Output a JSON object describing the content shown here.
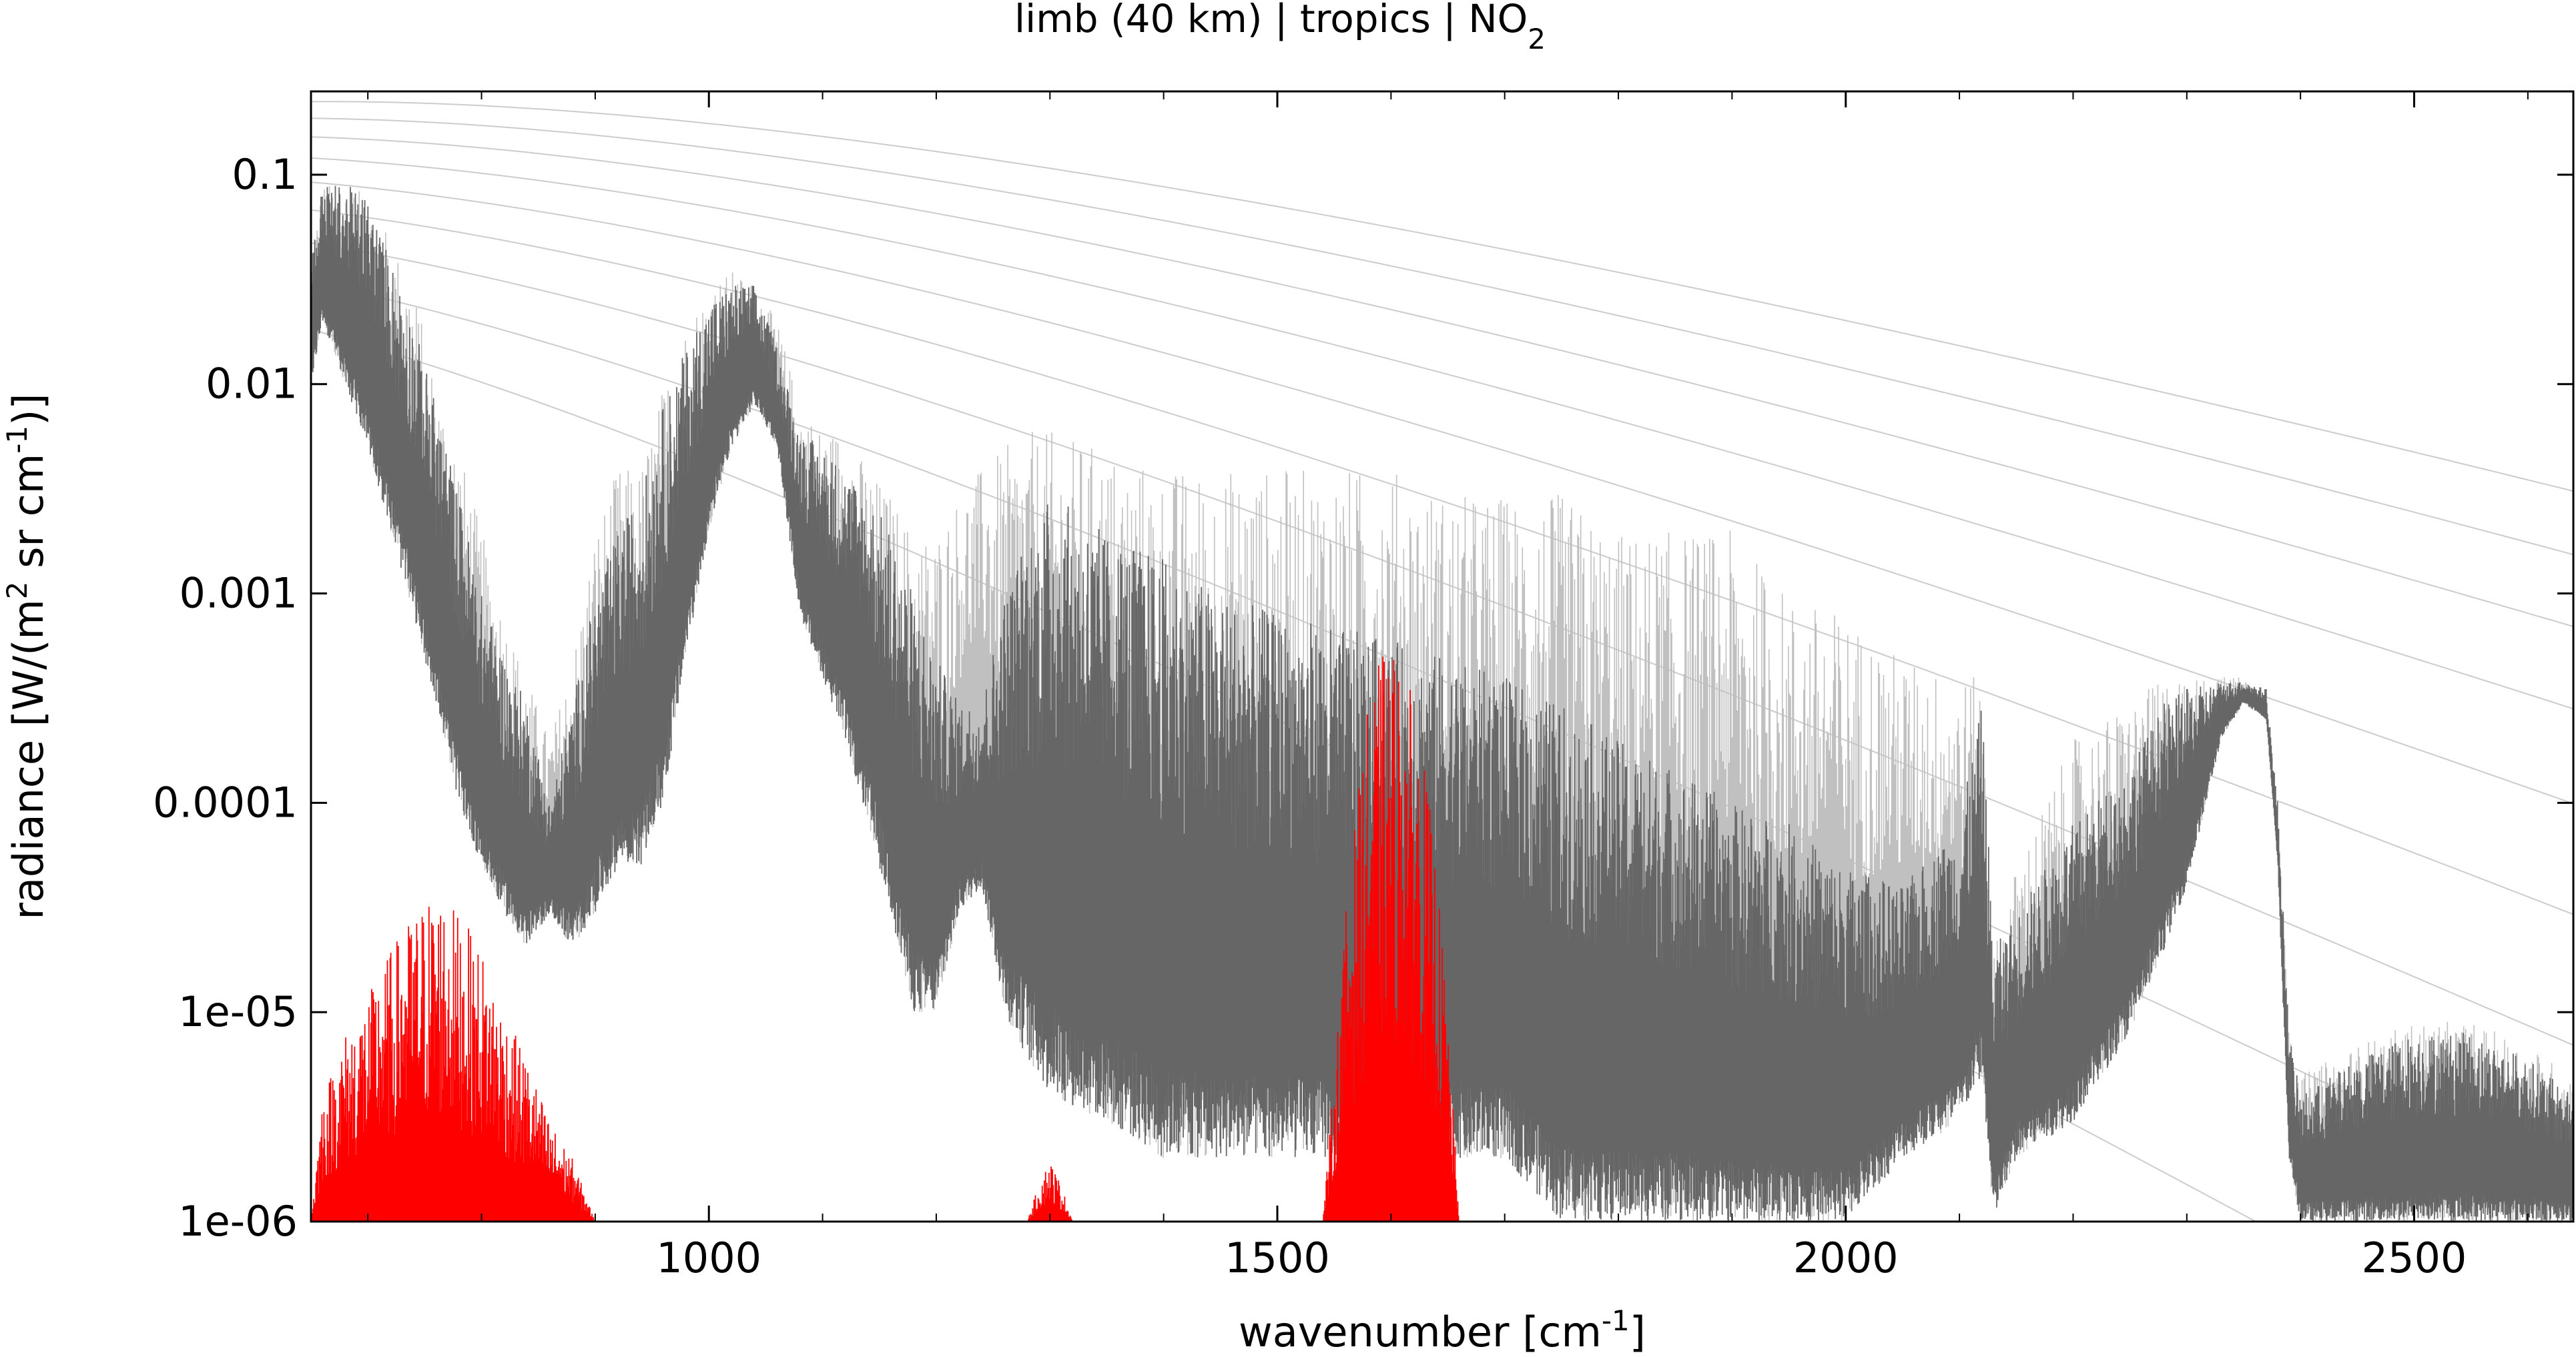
{
  "chart_data": {
    "type": "line",
    "title": {
      "prefix": "limb (40 km) | tropics | NO",
      "sub": "2"
    },
    "xlabel": {
      "prefix": "wavenumber [cm",
      "sup": "-1",
      "suffix": "]"
    },
    "ylabel": {
      "p1": "radiance [W/(m",
      "s1": "2",
      "p2": " sr cm",
      "s2": "-1",
      "p3": ")]"
    },
    "x_scale": "linear",
    "y_scale": "log",
    "xlim": [
      650,
      2640
    ],
    "ylim": [
      1e-06,
      0.25
    ],
    "xticks": [
      {
        "value": 1000,
        "label": "1000"
      },
      {
        "value": 1500,
        "label": "1500"
      },
      {
        "value": 2000,
        "label": "2000"
      },
      {
        "value": 2500,
        "label": "2500"
      }
    ],
    "yticks": [
      {
        "value": 0.1,
        "label": "0.1"
      },
      {
        "value": 0.01,
        "label": "0.01"
      },
      {
        "value": 0.001,
        "label": "0.001"
      },
      {
        "value": 0.0001,
        "label": "0.0001"
      },
      {
        "value": 1e-05,
        "label": "1e-05"
      },
      {
        "value": 1e-06,
        "label": "1e-06"
      }
    ],
    "grid": false,
    "legend": "none",
    "series": [
      {
        "role": "planck-reference-curves",
        "color": "#cccccc",
        "temperatures_K": [
          180,
          200,
          220,
          240,
          260,
          280,
          300,
          320,
          340
        ]
      },
      {
        "role": "total-radiance-envelope",
        "color": "#c0c0c0",
        "x": [
          650,
          660,
          680,
          700,
          720,
          740,
          760,
          780,
          800,
          820,
          840,
          860,
          880,
          900,
          920,
          940,
          960,
          980,
          1000,
          1020,
          1040,
          1060,
          1080,
          1100,
          1120,
          1140,
          1160,
          1180,
          1200,
          1220,
          1240,
          1260,
          1280,
          1300,
          1350,
          1400,
          1450,
          1500,
          1550,
          1600,
          1650,
          1700,
          1750,
          1800,
          1850,
          1900,
          1950,
          2000,
          2050,
          2100,
          2120,
          2130,
          2150,
          2200,
          2250,
          2280,
          2300,
          2330,
          2350,
          2370,
          2380,
          2390,
          2400,
          2450,
          2500,
          2550,
          2600,
          2640
        ],
        "y": [
          0.04,
          0.09,
          0.09,
          0.08,
          0.05,
          0.03,
          0.01,
          0.005,
          0.002,
          0.0008,
          0.0004,
          0.0002,
          0.0005,
          0.002,
          0.004,
          0.004,
          0.01,
          0.02,
          0.03,
          0.035,
          0.03,
          0.02,
          0.008,
          0.006,
          0.006,
          0.004,
          0.003,
          0.002,
          0.002,
          0.003,
          0.004,
          0.005,
          0.006,
          0.006,
          0.005,
          0.004,
          0.004,
          0.004,
          0.004,
          0.004,
          0.003,
          0.003,
          0.003,
          0.002,
          0.002,
          0.002,
          0.001,
          0.0008,
          0.0005,
          0.0004,
          0.0004,
          2e-05,
          5e-05,
          0.0002,
          0.0003,
          0.0004,
          0.0004,
          0.0004,
          0.0004,
          0.0003,
          0.0001,
          1e-05,
          5e-06,
          7e-06,
          9e-06,
          9e-06,
          7e-06,
          5e-06
        ]
      },
      {
        "role": "total-radiance-upper",
        "color": "#666666",
        "x": [
          650,
          660,
          680,
          700,
          720,
          740,
          760,
          780,
          800,
          820,
          840,
          860,
          880,
          900,
          920,
          940,
          960,
          980,
          1000,
          1020,
          1040,
          1060,
          1080,
          1100,
          1120,
          1140,
          1160,
          1180,
          1200,
          1220,
          1240,
          1260,
          1280,
          1300,
          1350,
          1400,
          1450,
          1500,
          1550,
          1600,
          1650,
          1700,
          1750,
          1800,
          1850,
          1900,
          1950,
          2000,
          2050,
          2100,
          2120,
          2130,
          2150,
          2200,
          2250,
          2280,
          2300,
          2330,
          2350,
          2370,
          2380,
          2390,
          2400,
          2450,
          2500,
          2550,
          2600,
          2640
        ],
        "y": [
          0.04,
          0.09,
          0.09,
          0.08,
          0.04,
          0.02,
          0.008,
          0.003,
          0.001,
          0.0005,
          0.0003,
          0.0001,
          0.0003,
          0.001,
          0.002,
          0.003,
          0.008,
          0.015,
          0.025,
          0.03,
          0.03,
          0.015,
          0.006,
          0.005,
          0.004,
          0.003,
          0.002,
          0.001,
          0.0005,
          0.0003,
          0.0003,
          0.001,
          0.002,
          0.003,
          0.002,
          0.0015,
          0.001,
          0.0008,
          0.0007,
          0.0006,
          0.0005,
          0.0004,
          0.0003,
          0.0002,
          0.00015,
          0.0001,
          8e-05,
          5e-05,
          4e-05,
          8e-05,
          0.0003,
          2e-05,
          3e-05,
          8e-05,
          0.00015,
          0.0003,
          0.00035,
          0.00038,
          0.00038,
          0.00035,
          0.0001,
          8e-06,
          4e-06,
          6e-06,
          8e-06,
          8e-06,
          6e-06,
          4e-06
        ]
      },
      {
        "role": "total-radiance-lower",
        "color": "#666666",
        "x": [
          650,
          660,
          680,
          700,
          720,
          740,
          760,
          780,
          800,
          820,
          840,
          860,
          880,
          900,
          920,
          940,
          960,
          980,
          1000,
          1020,
          1040,
          1060,
          1080,
          1100,
          1120,
          1140,
          1160,
          1180,
          1200,
          1220,
          1240,
          1260,
          1280,
          1300,
          1350,
          1400,
          1450,
          1500,
          1550,
          1600,
          1650,
          1700,
          1750,
          1800,
          1850,
          1900,
          1950,
          2000,
          2050,
          2100,
          2120,
          2130,
          2150,
          2200,
          2250,
          2280,
          2300,
          2330,
          2350,
          2370,
          2380,
          2390,
          2400,
          2450,
          2500,
          2550,
          2600,
          2640
        ],
        "y": [
          0.01,
          0.02,
          0.01,
          0.005,
          0.002,
          0.0008,
          0.0003,
          0.0001,
          5e-05,
          3e-05,
          2e-05,
          3e-05,
          2e-05,
          3e-05,
          5e-05,
          5e-05,
          0.0001,
          0.0005,
          0.002,
          0.005,
          0.008,
          0.005,
          0.0008,
          0.0004,
          0.0002,
          8e-05,
          3e-05,
          1e-05,
          1e-05,
          3e-05,
          4e-05,
          1e-05,
          6e-06,
          4e-06,
          3e-06,
          2e-06,
          2e-06,
          2e-06,
          2e-06,
          2e-06,
          2e-06,
          2e-06,
          1e-06,
          1e-06,
          1e-06,
          1e-06,
          1e-06,
          1e-06,
          2e-06,
          3e-06,
          5e-06,
          1e-06,
          2e-06,
          3e-06,
          8e-06,
          2e-05,
          4e-05,
          0.0002,
          0.0003,
          0.00025,
          5e-05,
          2e-06,
          1e-06,
          1e-06,
          1e-06,
          1e-06,
          1e-06,
          1e-06
        ]
      },
      {
        "role": "gas-contribution-NO2",
        "color": "#ff0000",
        "x": [
          650,
          660,
          680,
          700,
          720,
          740,
          760,
          780,
          800,
          820,
          840,
          860,
          880,
          900,
          1280,
          1290,
          1300,
          1310,
          1320,
          1540,
          1550,
          1560,
          1570,
          1580,
          1590,
          1600,
          1610,
          1620,
          1630,
          1640,
          1650,
          1660
        ],
        "y": [
          1e-06,
          4e-06,
          8e-06,
          1.2e-05,
          2e-05,
          3e-05,
          4e-05,
          3e-05,
          2e-05,
          1e-05,
          6e-06,
          3e-06,
          2e-06,
          1e-06,
          1e-06,
          1.5e-06,
          2e-06,
          1.5e-06,
          1e-06,
          1e-06,
          5e-06,
          3e-05,
          0.0001,
          0.0003,
          0.0005,
          0.0006,
          0.0005,
          0.0003,
          0.00015,
          5e-05,
          1e-05,
          1e-06
        ]
      }
    ]
  }
}
